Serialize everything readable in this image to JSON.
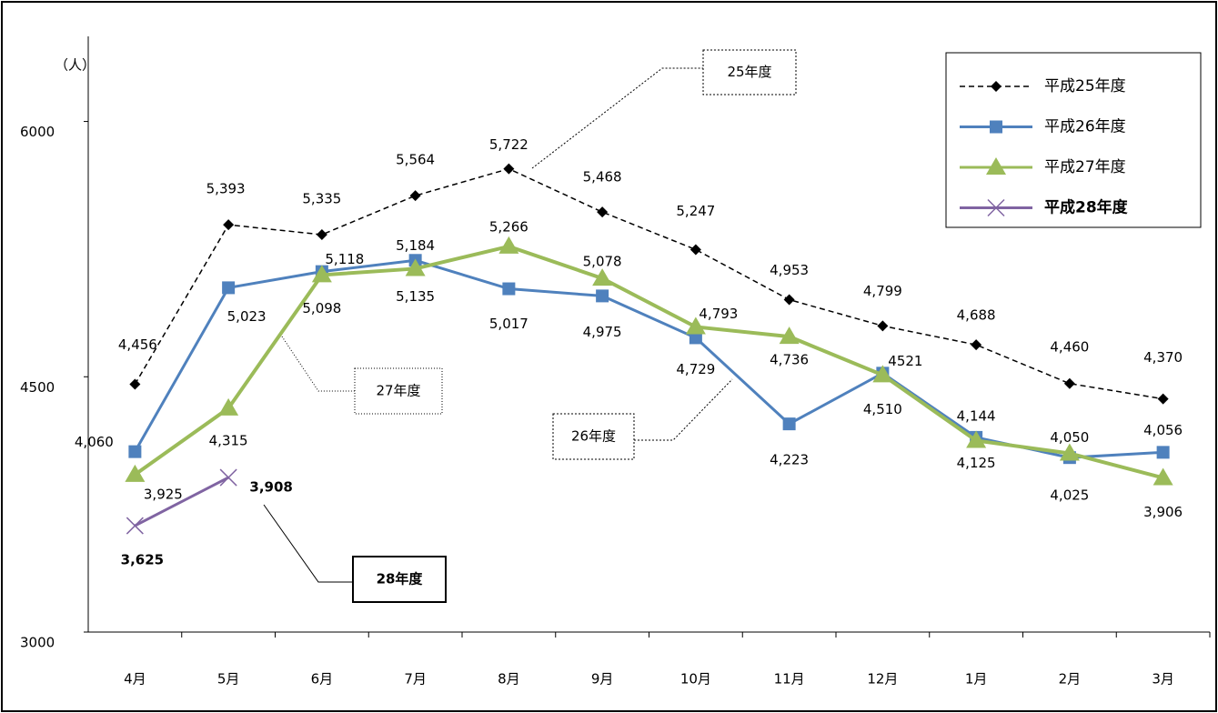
{
  "chart_data": {
    "type": "line",
    "unit_label": "（人）",
    "categories": [
      "4月",
      "5月",
      "6月",
      "7月",
      "8月",
      "9月",
      "10月",
      "11月",
      "12月",
      "1月",
      "2月",
      "3月"
    ],
    "series": [
      {
        "name": "平成25年度",
        "color": "#000000",
        "dashed": true,
        "marker": "diamond",
        "values": [
          4456,
          5393,
          5335,
          5564,
          5722,
          5468,
          5247,
          4953,
          4799,
          4688,
          4460,
          4370
        ],
        "value_labels": [
          "4,456",
          "5,393",
          "5,335",
          "5,564",
          "5,722",
          "5,468",
          "5,247",
          "4,953",
          "4,799",
          "4,688",
          "4,460",
          "4,370"
        ]
      },
      {
        "name": "平成26年度",
        "color": "#4f81bd",
        "dashed": false,
        "marker": "square",
        "values": [
          4060,
          5023,
          5118,
          5184,
          5017,
          4975,
          4729,
          4223,
          4521,
          4144,
          4025,
          4056
        ],
        "value_labels": [
          "4,060",
          "5,023",
          "5,118",
          "5,184",
          "5,017",
          "4,975",
          "4,729",
          "4,223",
          "4521",
          "4,144",
          "4,025",
          "4,056"
        ]
      },
      {
        "name": "平成27年度",
        "color": "#9bbb59",
        "dashed": false,
        "marker": "triangle",
        "values": [
          3925,
          4315,
          5098,
          5135,
          5266,
          5078,
          4793,
          4736,
          4510,
          4125,
          4050,
          3906
        ],
        "value_labels": [
          "3,925",
          "4,315",
          "5,098",
          "5,135",
          "5,266",
          "5,078",
          "4,793",
          "4,736",
          "4,510",
          "4,125",
          "4,050",
          "3,906"
        ]
      },
      {
        "name": "平成28年度",
        "color": "#8064a2",
        "dashed": false,
        "marker": "x",
        "bold": true,
        "values": [
          3625,
          3908,
          null,
          null,
          null,
          null,
          null,
          null,
          null,
          null,
          null,
          null
        ],
        "value_labels": [
          "3,625",
          "3,908",
          null,
          null,
          null,
          null,
          null,
          null,
          null,
          null,
          null,
          null
        ]
      }
    ],
    "annotations": [
      "25年度",
      "26年度",
      "27年度",
      "28年度"
    ],
    "ylim": [
      3000,
      6500
    ],
    "yticks": [
      3000,
      4500,
      6000
    ],
    "grid": false,
    "legend": "upper right"
  }
}
